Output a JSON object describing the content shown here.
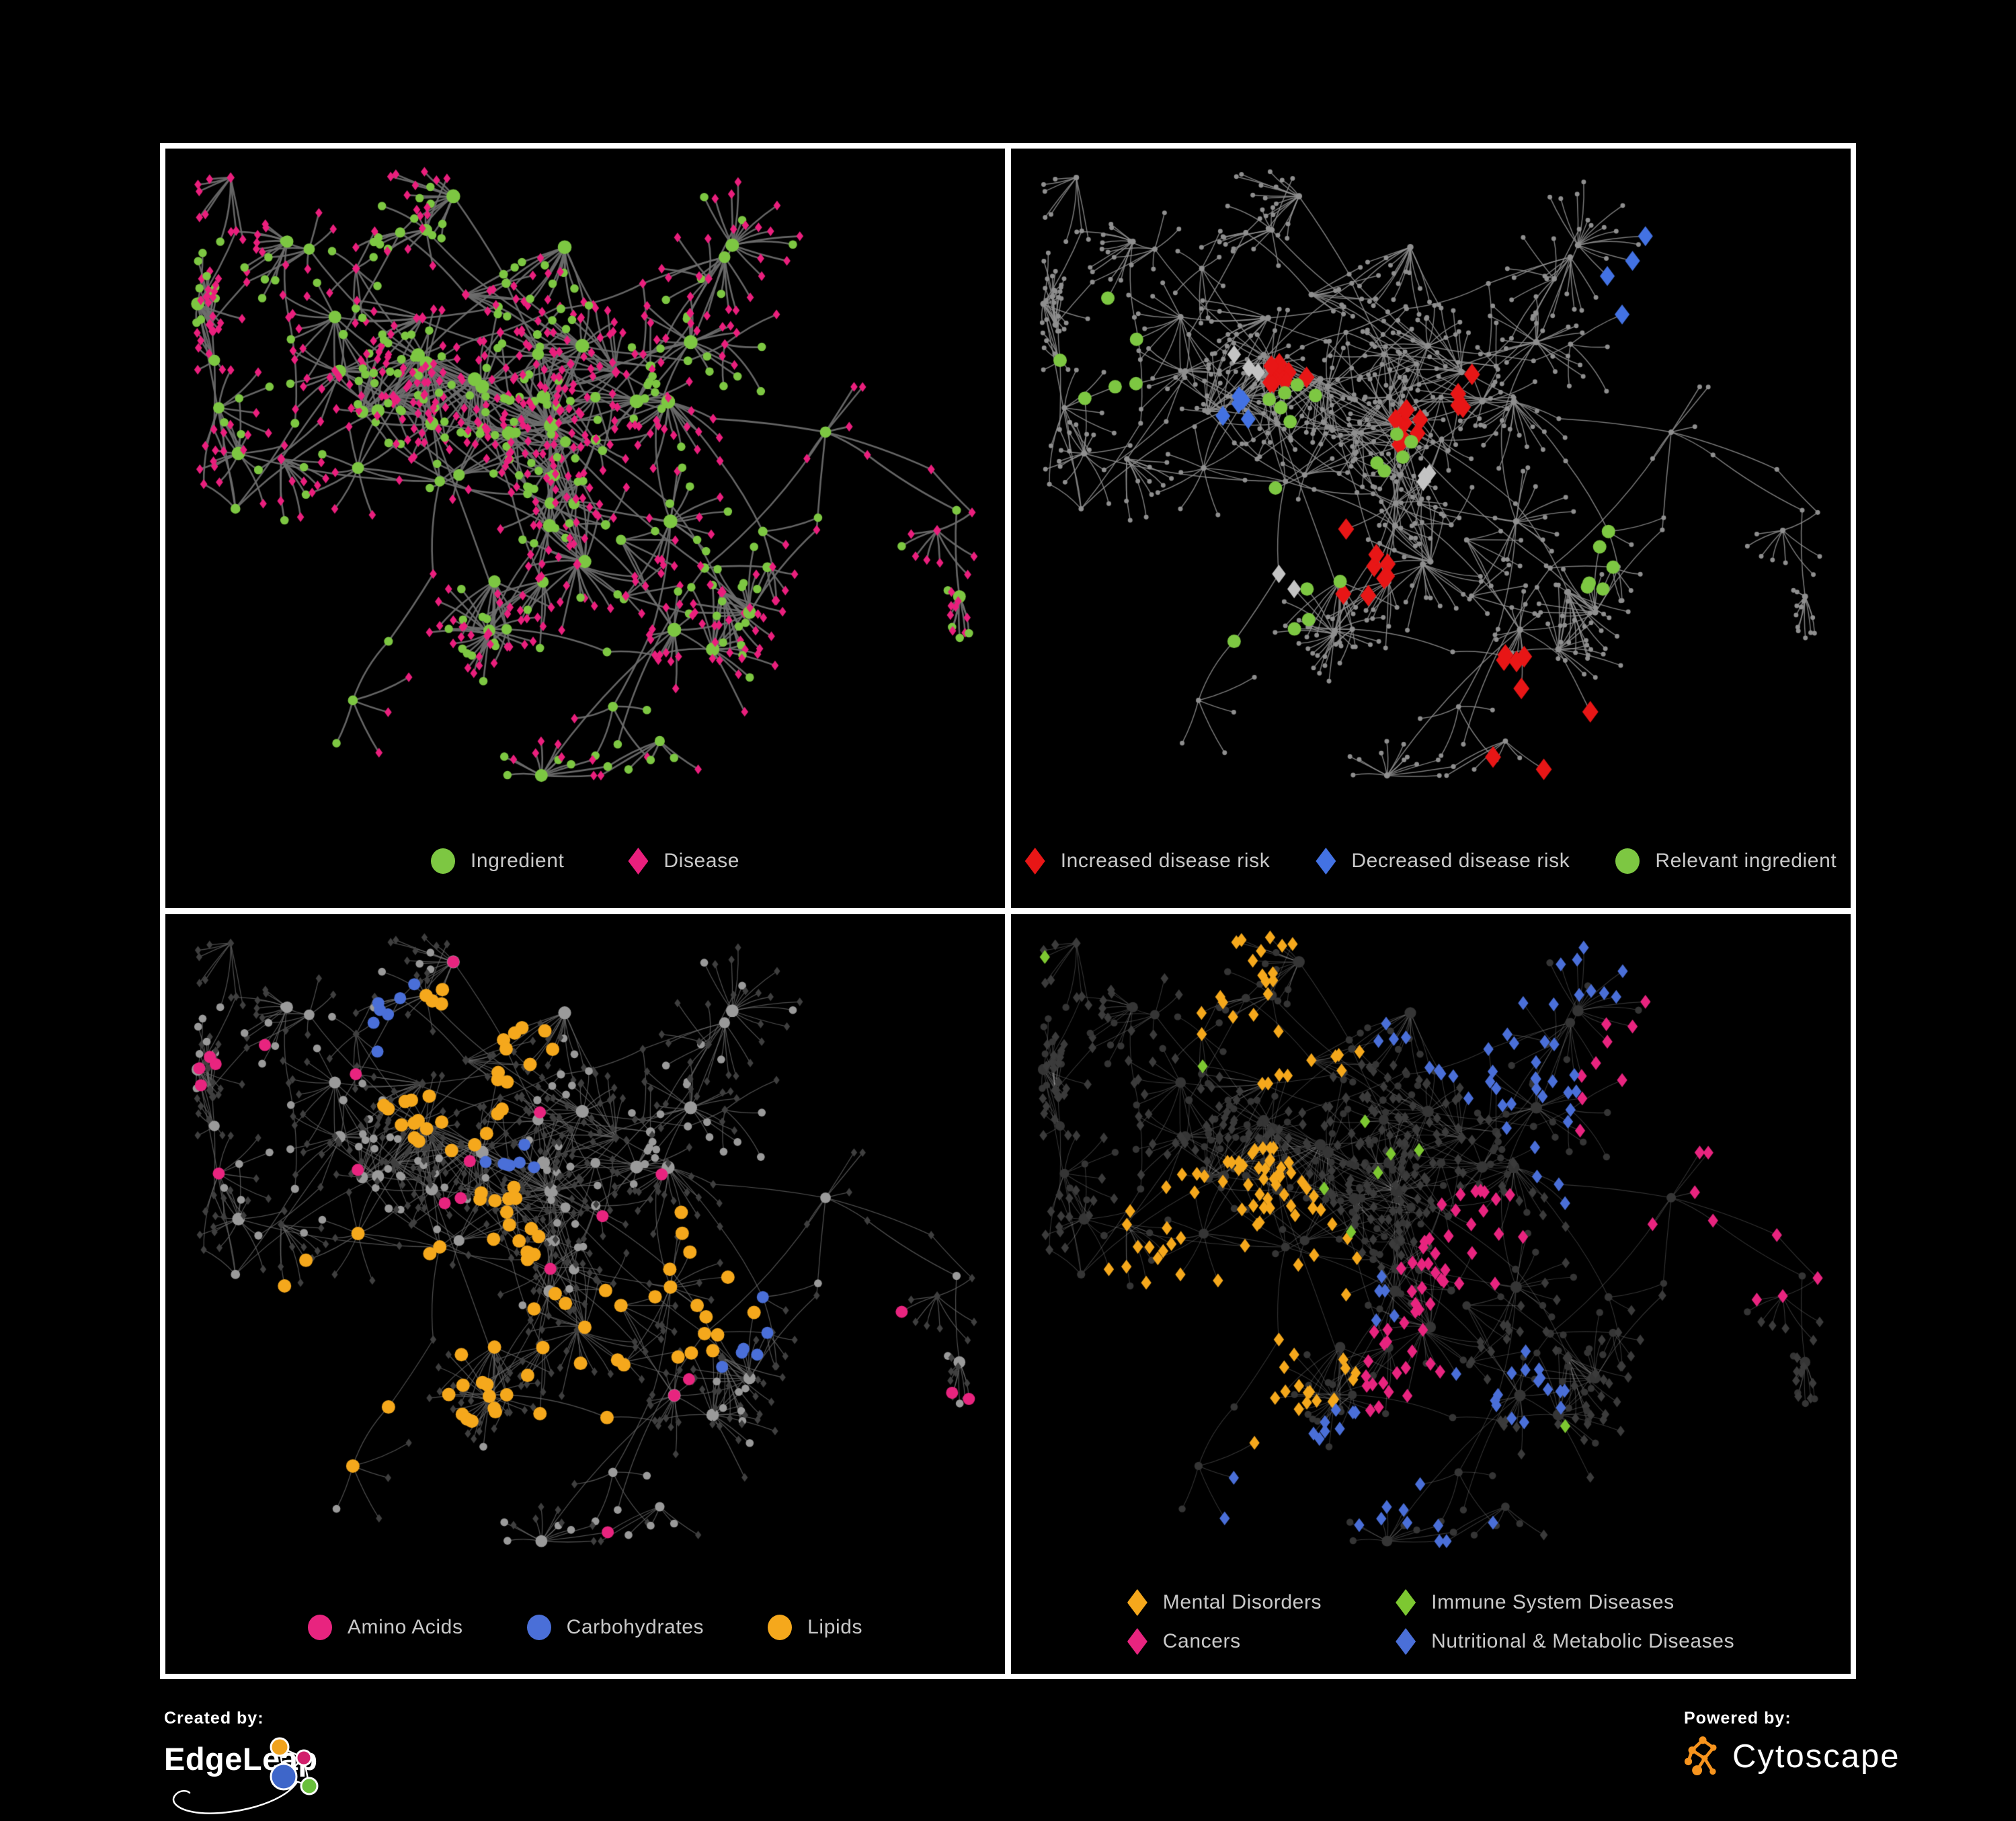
{
  "branding": {
    "created_by_label": "Created by:",
    "created_by_name": "EdgeLeap",
    "powered_by_label": "Powered by:",
    "powered_by_name": "Cytoscape"
  },
  "panels": [
    {
      "name": "ingredient-disease-network",
      "legend": [
        {
          "shape": "circle",
          "color": "#7dc742",
          "label": "Ingredient"
        },
        {
          "shape": "diamond",
          "color": "#ea1f7d",
          "label": "Disease"
        }
      ],
      "network": {
        "baseAllCircles": false,
        "edge": {
          "color": "#6e6e6e",
          "width": 2.6,
          "alpha": 0.92
        },
        "diamond": {
          "color": "#ea1f7d",
          "size": 6.2
        },
        "circle": {
          "color": "#7dc742",
          "base": 6
        },
        "highlights": []
      }
    },
    {
      "name": "disease-risk-network",
      "legend": [
        {
          "shape": "diamond",
          "color": "#e81616",
          "label": "Increased disease risk"
        },
        {
          "shape": "diamond",
          "color": "#4372e3",
          "label": "Decreased disease risk"
        },
        {
          "shape": "circle",
          "color": "#7dc742",
          "label": "Relevant ingredient"
        }
      ],
      "network": {
        "baseAllCircles": true,
        "edge": {
          "color": "#8f8f8f",
          "width": 1.5,
          "alpha": 0.85
        },
        "diamond": {
          "color": "#8f8f8f",
          "size": 3.2
        },
        "circle": {
          "color": "#8f8f8f",
          "base": 3.4
        },
        "highlights": [
          {
            "shape": "diamond",
            "color": "#e81616",
            "size": 14,
            "count": 36,
            "centers": [
              [
                0.33,
                0.3
              ],
              [
                0.47,
                0.37
              ],
              [
                0.41,
                0.54
              ],
              [
                0.61,
                0.77
              ],
              [
                0.55,
                0.33
              ]
            ]
          },
          {
            "shape": "diamond",
            "color": "#4372e3",
            "size": 13,
            "count": 9,
            "centers": [
              [
                0.27,
                0.35
              ],
              [
                0.83,
                0.17
              ]
            ]
          },
          {
            "shape": "diamond",
            "color": "#c3c3c3",
            "size": 12,
            "count": 8,
            "centers": [
              [
                0.29,
                0.27
              ],
              [
                0.5,
                0.43
              ],
              [
                0.3,
                0.55
              ]
            ]
          },
          {
            "shape": "circle",
            "color": "#7dc742",
            "size": 10,
            "count": 30,
            "centers": [
              [
                0.34,
                0.33
              ],
              [
                0.46,
                0.4
              ],
              [
                0.29,
                0.55
              ],
              [
                0.13,
                0.27
              ],
              [
                0.72,
                0.55
              ]
            ]
          }
        ]
      }
    },
    {
      "name": "nutrient-class-network",
      "legend": [
        {
          "shape": "circle",
          "color": "#e8247f",
          "label": "Amino Acids"
        },
        {
          "shape": "circle",
          "color": "#4a6fd8",
          "label": "Carbohydrates"
        },
        {
          "shape": "circle",
          "color": "#f5a81c",
          "label": "Lipids"
        }
      ],
      "network": {
        "baseAllCircles": false,
        "edge": {
          "color": "#6a6a6a",
          "width": 1.3,
          "alpha": 0.72
        },
        "diamond": {
          "color": "#3f3f3f",
          "size": 5.4
        },
        "circle": {
          "color": "#9a9a9a",
          "base": 5.6
        },
        "highlights": [
          {
            "shape": "circle",
            "color": "#f5a81c",
            "size": 10,
            "count": 95,
            "centers": [
              [
                0.38,
                0.17
              ],
              [
                0.41,
                0.4
              ],
              [
                0.49,
                0.61
              ],
              [
                0.61,
                0.48
              ],
              [
                0.27,
                0.57
              ],
              [
                0.33,
                0.24
              ]
            ]
          },
          {
            "shape": "circle",
            "color": "#4a6fd8",
            "size": 9,
            "count": 20,
            "centers": [
              [
                0.41,
                0.33
              ],
              [
                0.3,
                0.15
              ],
              [
                0.69,
                0.55
              ]
            ]
          },
          {
            "shape": "circle",
            "color": "#e8247f",
            "size": 9,
            "count": 22,
            "mode": "random"
          }
        ]
      }
    },
    {
      "name": "disease-category-network",
      "legend": [
        {
          "shape": "diamond",
          "color": "#f5a81c",
          "label": "Mental Disorders"
        },
        {
          "shape": "diamond",
          "color": "#7dc831",
          "label": "Immune System Diseases"
        },
        {
          "shape": "diamond",
          "color": "#e8247f",
          "label": "Cancers"
        },
        {
          "shape": "diamond",
          "color": "#4a6fd8",
          "label": "Nutritional & Metabolic Diseases"
        }
      ],
      "network": {
        "baseAllCircles": false,
        "edge": {
          "color": "#ababab",
          "width": 1.1,
          "alpha": 0.3
        },
        "diamond": {
          "color": "#3b3b3b",
          "size": 6.8
        },
        "circle": {
          "color": "#353535",
          "base": 5
        },
        "highlights": [
          {
            "shape": "diamond",
            "color": "#f5a81c",
            "size": 9,
            "count": 112,
            "centers": [
              [
                0.22,
                0.44
              ],
              [
                0.29,
                0.38
              ],
              [
                0.27,
                0.52
              ],
              [
                0.33,
                0.09
              ]
            ]
          },
          {
            "shape": "diamond",
            "color": "#e8247f",
            "size": 9,
            "count": 72,
            "centers": [
              [
                0.5,
                0.5
              ],
              [
                0.46,
                0.6
              ],
              [
                0.56,
                0.44
              ],
              [
                0.9,
                0.28
              ]
            ]
          },
          {
            "shape": "diamond",
            "color": "#4a6fd8",
            "size": 9,
            "count": 86,
            "centers": [
              [
                0.53,
                0.07
              ],
              [
                0.76,
                0.28
              ],
              [
                0.62,
                0.62
              ],
              [
                0.37,
                0.72
              ],
              [
                0.7,
                0.1
              ],
              [
                0.3,
                0.75
              ]
            ]
          },
          {
            "shape": "diamond",
            "color": "#7dc831",
            "size": 9,
            "count": 9,
            "mode": "random"
          }
        ]
      }
    }
  ]
}
